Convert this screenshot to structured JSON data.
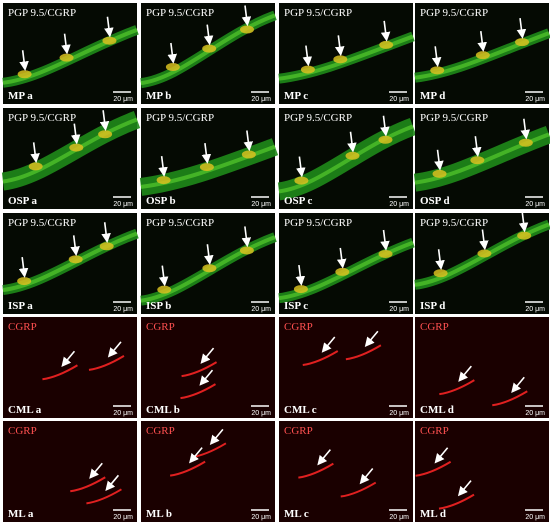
{
  "panels": [
    {
      "stain": "PGP 9.5/CGRP",
      "label": "MP a",
      "scale": "20 μm"
    },
    {
      "stain": "PGP 9.5/CGRP",
      "label": "MP b",
      "scale": "20 μm"
    },
    {
      "stain": "PGP 9.5/CGRP",
      "label": "MP c",
      "scale": "20 μm"
    },
    {
      "stain": "PGP 9.5/CGRP",
      "label": "MP d",
      "scale": "20 μm"
    },
    {
      "stain": "PGP 9.5/CGRP",
      "label": "OSP a",
      "scale": "20 μm"
    },
    {
      "stain": "PGP 9.5/CGRP",
      "label": "OSP b",
      "scale": "20 μm"
    },
    {
      "stain": "PGP 9.5/CGRP",
      "label": "OSP c",
      "scale": "20 μm"
    },
    {
      "stain": "PGP 9.5/CGRP",
      "label": "OSP d",
      "scale": "20 μm"
    },
    {
      "stain": "PGP 9.5/CGRP",
      "label": "ISP a",
      "scale": "20 μm"
    },
    {
      "stain": "PGP 9.5/CGRP",
      "label": "ISP b",
      "scale": "20 μm"
    },
    {
      "stain": "PGP 9.5/CGRP",
      "label": "ISP c",
      "scale": "20 μm"
    },
    {
      "stain": "PGP 9.5/CGRP",
      "label": "ISP d",
      "scale": "20 μm"
    },
    {
      "stain": "CGRP",
      "label": "CML a",
      "scale": "20 μm"
    },
    {
      "stain": "CGRP",
      "label": "CML b",
      "scale": "20 μm"
    },
    {
      "stain": "CGRP",
      "label": "CML c",
      "scale": "20 μm"
    },
    {
      "stain": "CGRP",
      "label": "CML d",
      "scale": "20 μm"
    },
    {
      "stain": "CGRP",
      "label": "ML a",
      "scale": "20 μm"
    },
    {
      "stain": "CGRP",
      "label": "ML b",
      "scale": "20 μm"
    },
    {
      "stain": "CGRP",
      "label": "ML c",
      "scale": "20 μm"
    },
    {
      "stain": "CGRP",
      "label": "ML d",
      "scale": "20 μm"
    }
  ]
}
